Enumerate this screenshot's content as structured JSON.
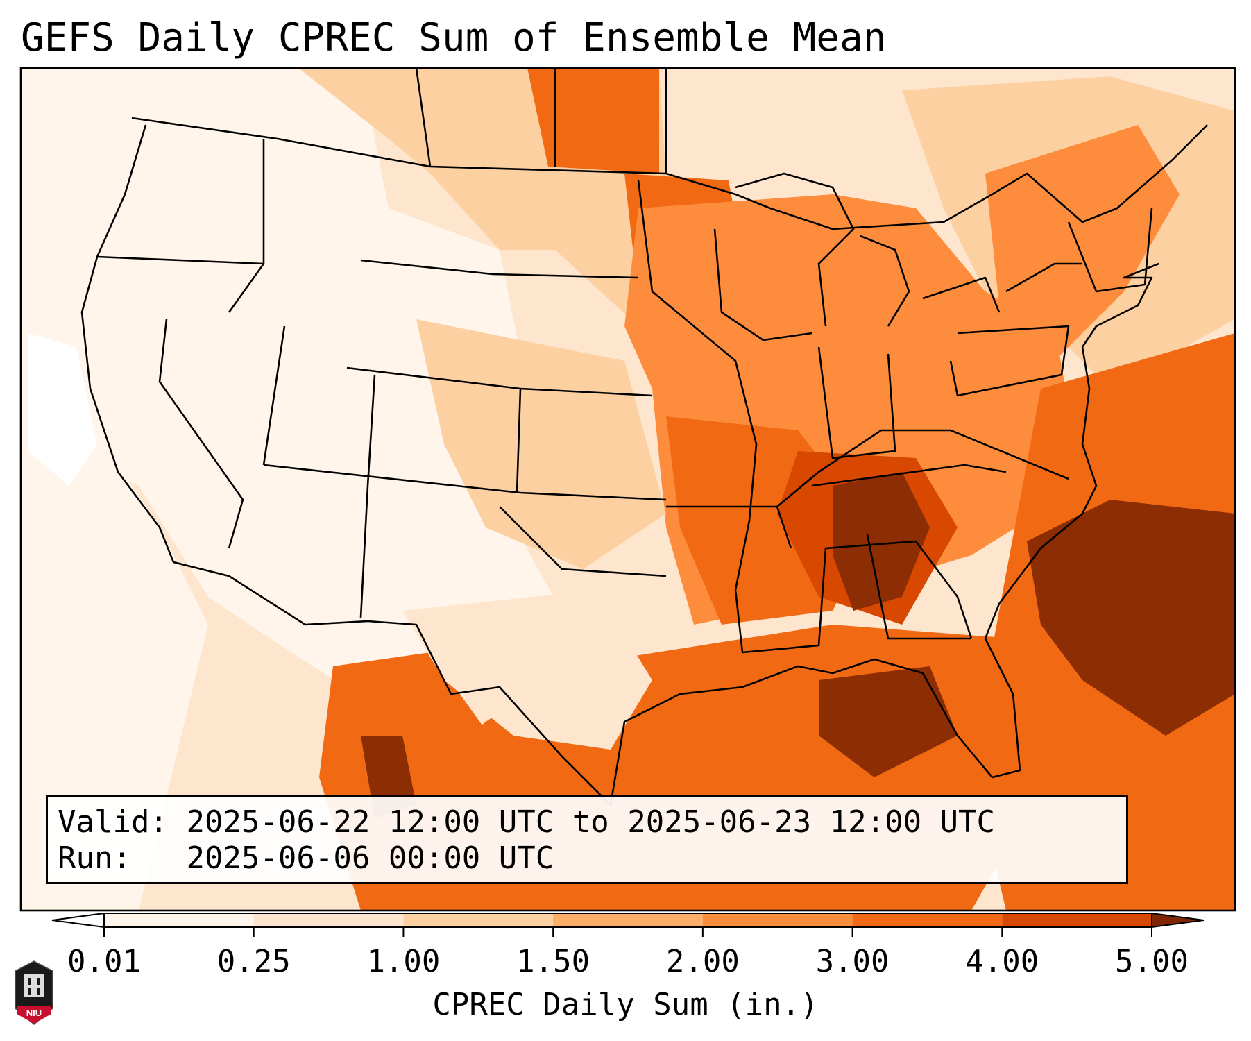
{
  "title": "GEFS Daily CPREC Sum of Ensemble Mean",
  "info": {
    "valid_label": "Valid:",
    "valid_value": "2025-06-22 12:00 UTC to 2025-06-23 12:00 UTC",
    "run_label": "Run:",
    "run_value": "2025-06-06 00:00 UTC"
  },
  "colorbar": {
    "label": "CPREC Daily Sum (in.)",
    "ticks": [
      "0.01",
      "0.25",
      "1.00",
      "1.50",
      "2.00",
      "3.00",
      "4.00",
      "5.00"
    ],
    "colors": [
      "#fff5eb",
      "#fee6ce",
      "#fdd0a2",
      "#fdae6b",
      "#fd8d3c",
      "#f16913",
      "#d94801",
      "#8c2d04"
    ],
    "under_color": "#ffffff",
    "over_color": "#7f2704"
  },
  "logo": {
    "text": "NIU",
    "color": "#c8102e"
  },
  "chart_data": {
    "type": "heatmap",
    "title": "GEFS Daily CPREC Sum of Ensemble Mean",
    "colorbar_label": "CPREC Daily Sum (in.)",
    "levels": [
      0.01,
      0.25,
      1.0,
      1.5,
      2.0,
      3.0,
      4.0,
      5.0
    ],
    "region": "Contiguous United States",
    "valid": "2025-06-22 12:00 UTC to 2025-06-23 12:00 UTC",
    "run": "2025-06-06 00:00 UTC"
  }
}
